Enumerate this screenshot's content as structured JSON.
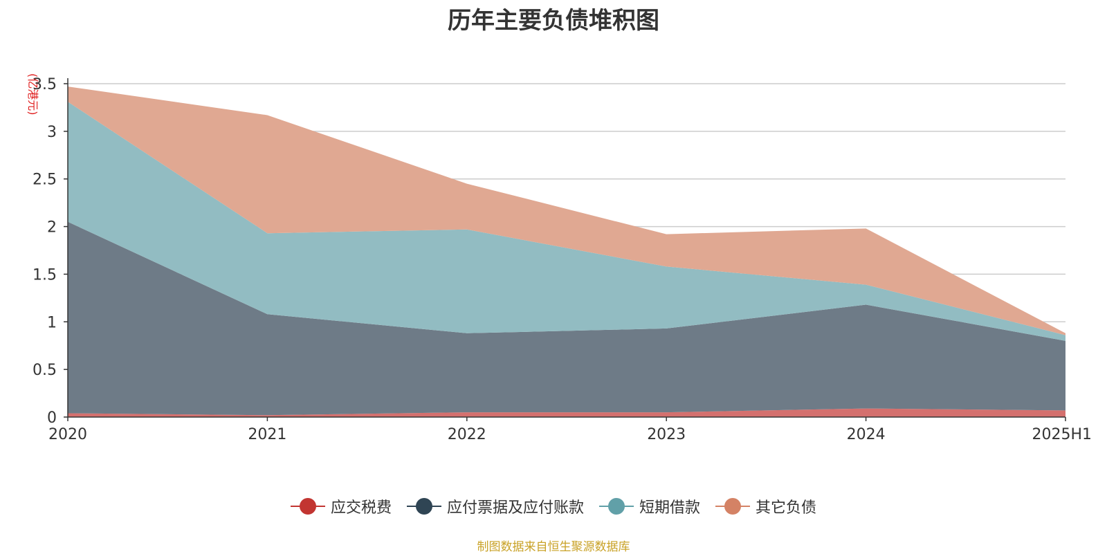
{
  "chart_data": {
    "type": "area",
    "stacked": true,
    "title": "历年主要负债堆积图",
    "ylabel": "(亿港元)",
    "xlabel": "",
    "categories": [
      "2020",
      "2021",
      "2022",
      "2023",
      "2024",
      "2025H1"
    ],
    "ylim": [
      0,
      3.5
    ],
    "yticks": [
      "0",
      "0.5",
      "1",
      "1.5",
      "2",
      "2.5",
      "3",
      "3.5"
    ],
    "grid": true,
    "legend_position": "bottom",
    "series": [
      {
        "name": "应交税费",
        "color": "#c23531",
        "fill": "#d4706e",
        "values": [
          0.04,
          0.02,
          0.05,
          0.05,
          0.09,
          0.07
        ]
      },
      {
        "name": "应付票据及应付账款",
        "color": "#2f4554",
        "fill": "#6e7b87",
        "values": [
          2.01,
          1.06,
          0.83,
          0.88,
          1.09,
          0.73
        ]
      },
      {
        "name": "短期借款",
        "color": "#61a0a8",
        "fill": "#92bcc2",
        "values": [
          1.26,
          0.85,
          1.09,
          0.65,
          0.21,
          0.06
        ]
      },
      {
        "name": "其它负债",
        "color": "#d48265",
        "fill": "#e0a892",
        "values": [
          0.16,
          1.24,
          0.48,
          0.34,
          0.59,
          0.02
        ]
      }
    ]
  },
  "source_note": "制图数据来自恒生聚源数据库"
}
